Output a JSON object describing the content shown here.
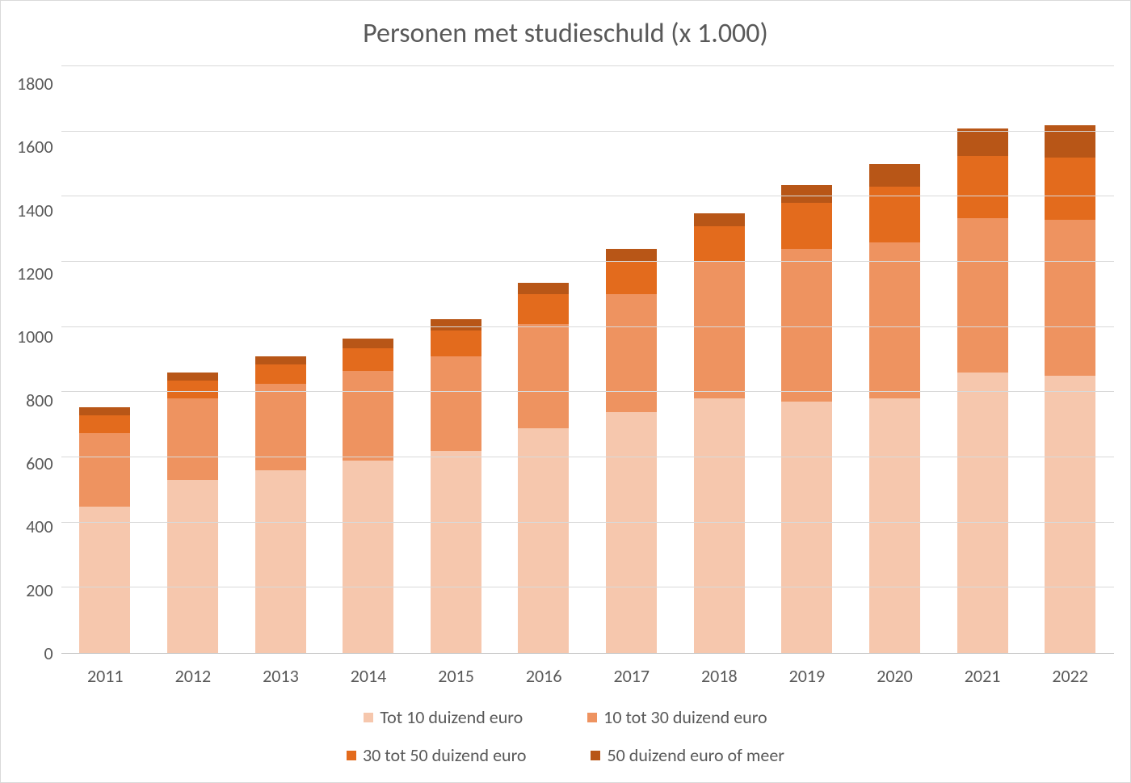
{
  "chart": {
    "type": "stacked-bar",
    "title": "Personen met studieschuld (x 1.000)",
    "title_fontsize": 34,
    "axis_fontsize": 22,
    "legend_fontsize": 22,
    "text_color": "#595959",
    "background_color": "#ffffff",
    "border_color": "#d9d9d9",
    "grid_color": "#d9d9d9",
    "axis_line_color": "#bfbfbf",
    "ylim": [
      0,
      1800
    ],
    "ytick_step": 200,
    "yticks": [
      1800,
      1600,
      1400,
      1200,
      1000,
      800,
      600,
      400,
      200,
      0
    ],
    "bar_width_pct": 58,
    "categories": [
      "2011",
      "2012",
      "2013",
      "2014",
      "2015",
      "2016",
      "2017",
      "2018",
      "2019",
      "2020",
      "2021",
      "2022"
    ],
    "series": [
      {
        "name": "Tot 10 duizend euro",
        "color": "#f6c7ad",
        "values": [
          450,
          530,
          560,
          590,
          620,
          690,
          740,
          780,
          770,
          780,
          860,
          850
        ]
      },
      {
        "name": "10 tot 30 duizend euro",
        "color": "#ee9360",
        "values": [
          225,
          250,
          265,
          275,
          290,
          320,
          360,
          420,
          470,
          480,
          475,
          480
        ]
      },
      {
        "name": "30 tot 50 duizend euro",
        "color": "#e36b1d",
        "values": [
          55,
          55,
          60,
          70,
          80,
          90,
          100,
          110,
          140,
          170,
          190,
          190
        ]
      },
      {
        "name": "50 duizend euro of meer",
        "color": "#b85617",
        "values": [
          25,
          25,
          25,
          30,
          35,
          35,
          40,
          40,
          55,
          70,
          85,
          100
        ]
      }
    ],
    "legend_layout": [
      [
        0,
        1
      ],
      [
        2,
        3
      ]
    ]
  }
}
